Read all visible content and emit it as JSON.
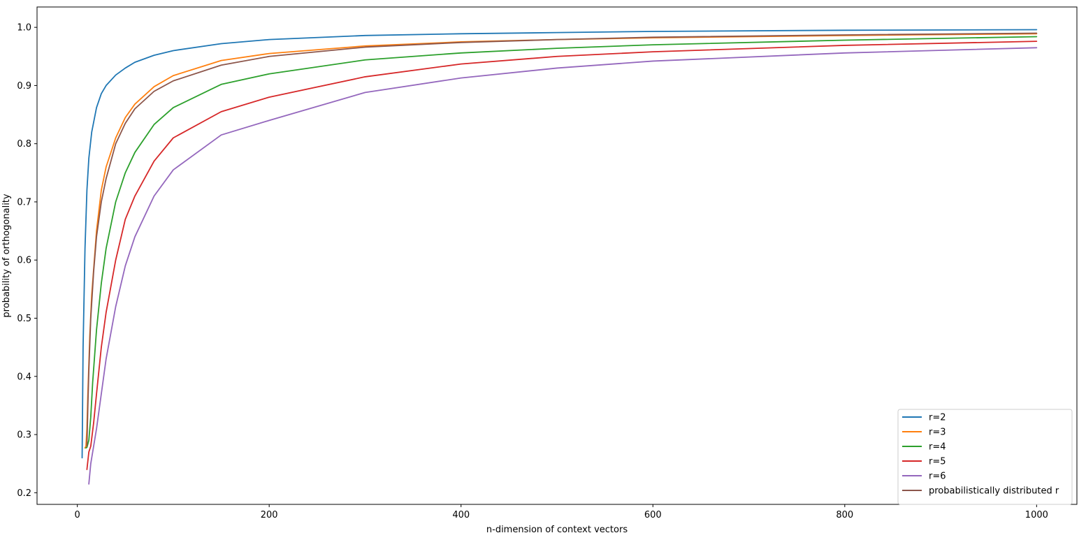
{
  "chart_data": {
    "type": "line",
    "title": "",
    "xlabel": "n-dimension of context vectors",
    "ylabel": "probability of orthogonality",
    "xlim": [
      -42,
      1042
    ],
    "ylim": [
      0.18,
      1.035
    ],
    "xticks": [
      0,
      200,
      400,
      600,
      800,
      1000
    ],
    "yticks": [
      0.2,
      0.3,
      0.4,
      0.5,
      0.6,
      0.7,
      0.8,
      0.9,
      1.0
    ],
    "grid": false,
    "legend_position": "bottom-right",
    "series": [
      {
        "name": "r=2",
        "color": "#1f77b4",
        "x": [
          5,
          6,
          8,
          10,
          12,
          15,
          20,
          25,
          30,
          40,
          50,
          60,
          80,
          100,
          150,
          200,
          300,
          400,
          500,
          600,
          800,
          1000
        ],
        "y": [
          0.26,
          0.45,
          0.62,
          0.72,
          0.775,
          0.82,
          0.862,
          0.886,
          0.9,
          0.918,
          0.93,
          0.94,
          0.952,
          0.96,
          0.972,
          0.979,
          0.986,
          0.989,
          0.991,
          0.993,
          0.995,
          0.996
        ]
      },
      {
        "name": "r=3",
        "color": "#ff7f0e",
        "x": [
          8,
          9,
          10,
          11,
          13,
          15,
          20,
          25,
          30,
          40,
          50,
          60,
          80,
          100,
          150,
          200,
          300,
          400,
          500,
          600,
          800,
          1000
        ],
        "y": [
          0.277,
          0.28,
          0.31,
          0.37,
          0.47,
          0.54,
          0.65,
          0.72,
          0.76,
          0.81,
          0.845,
          0.868,
          0.898,
          0.917,
          0.943,
          0.955,
          0.968,
          0.975,
          0.979,
          0.982,
          0.986,
          0.989
        ]
      },
      {
        "name": "r=4",
        "color": "#2ca02c",
        "x": [
          9,
          10,
          12,
          14,
          16,
          20,
          25,
          30,
          40,
          50,
          60,
          80,
          100,
          150,
          200,
          300,
          400,
          500,
          600,
          800,
          1000
        ],
        "y": [
          0.277,
          0.278,
          0.29,
          0.33,
          0.39,
          0.48,
          0.56,
          0.62,
          0.7,
          0.75,
          0.785,
          0.833,
          0.862,
          0.902,
          0.92,
          0.944,
          0.956,
          0.964,
          0.97,
          0.978,
          0.984
        ]
      },
      {
        "name": "r=5",
        "color": "#d62728",
        "x": [
          10,
          12,
          14,
          17,
          20,
          25,
          30,
          40,
          50,
          60,
          80,
          100,
          150,
          200,
          300,
          400,
          500,
          600,
          800,
          1000
        ],
        "y": [
          0.24,
          0.27,
          0.28,
          0.32,
          0.37,
          0.45,
          0.51,
          0.6,
          0.67,
          0.71,
          0.77,
          0.81,
          0.855,
          0.88,
          0.915,
          0.937,
          0.95,
          0.958,
          0.969,
          0.976
        ]
      },
      {
        "name": "r=6",
        "color": "#9467bd",
        "x": [
          12,
          14,
          17,
          20,
          25,
          30,
          40,
          50,
          60,
          80,
          100,
          150,
          200,
          300,
          400,
          500,
          600,
          800,
          1000
        ],
        "y": [
          0.215,
          0.25,
          0.28,
          0.31,
          0.37,
          0.43,
          0.52,
          0.59,
          0.64,
          0.71,
          0.755,
          0.815,
          0.84,
          0.888,
          0.913,
          0.93,
          0.942,
          0.956,
          0.965
        ]
      },
      {
        "name": "probabilistically distributed r",
        "color": "#8c564b",
        "x": [
          10,
          11,
          12,
          14,
          17,
          20,
          25,
          30,
          40,
          50,
          60,
          80,
          100,
          150,
          200,
          300,
          400,
          500,
          600,
          800,
          1000
        ],
        "y": [
          0.28,
          0.35,
          0.41,
          0.5,
          0.58,
          0.64,
          0.7,
          0.74,
          0.8,
          0.835,
          0.86,
          0.89,
          0.908,
          0.935,
          0.95,
          0.966,
          0.974,
          0.979,
          0.983,
          0.987,
          0.99
        ]
      }
    ]
  }
}
